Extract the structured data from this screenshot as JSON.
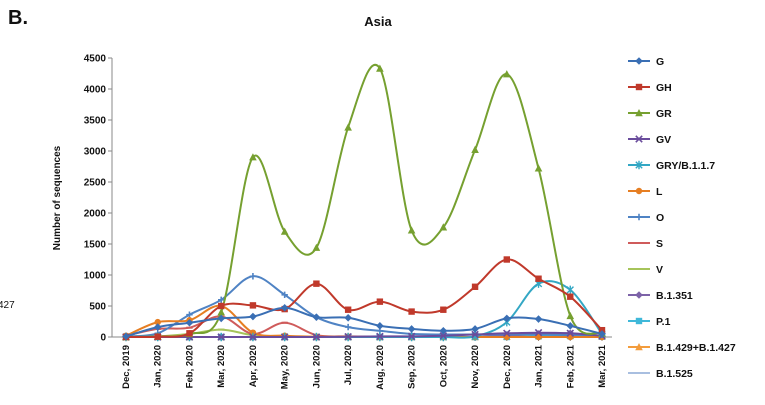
{
  "panel_label": "B.",
  "edge_fragment": "427",
  "chart_data": {
    "type": "line",
    "title": "Asia",
    "xlabel": "",
    "ylabel": "Number of sequences",
    "ylim": [
      0,
      4500
    ],
    "yticks": [
      0,
      500,
      1000,
      1500,
      2000,
      2500,
      3000,
      3500,
      4000,
      4500
    ],
    "grid": false,
    "legend_position": "right",
    "smooth": true,
    "categories": [
      "Dec, 2019",
      "Jan, 2020",
      "Feb, 2020",
      "Mar, 2020",
      "Apr, 2020",
      "May, 2020",
      "Jun, 2020",
      "Jul, 2020",
      "Aug, 2020",
      "Sep, 2020",
      "Oct, 2020",
      "Nov, 2020",
      "Dec, 2020",
      "Jan, 2021",
      "Feb, 2021",
      "Mar, 2021"
    ],
    "series": [
      {
        "name": "G",
        "color": "#3a6fb4",
        "marker": "diamond",
        "values": [
          10,
          160,
          230,
          300,
          330,
          470,
          320,
          310,
          180,
          130,
          100,
          130,
          300,
          290,
          180,
          50
        ]
      },
      {
        "name": "GH",
        "color": "#c0392b",
        "marker": "square",
        "values": [
          0,
          5,
          60,
          500,
          510,
          450,
          860,
          440,
          570,
          410,
          440,
          810,
          1250,
          940,
          650,
          110
        ]
      },
      {
        "name": "GR",
        "color": "#76a030",
        "marker": "triangle",
        "values": [
          0,
          10,
          50,
          400,
          2900,
          1700,
          1440,
          3380,
          4330,
          1720,
          1770,
          3020,
          4240,
          2720,
          340,
          60
        ]
      },
      {
        "name": "GV",
        "color": "#6a4c9c",
        "marker": "x",
        "values": [
          0,
          0,
          0,
          0,
          0,
          0,
          0,
          5,
          10,
          10,
          20,
          40,
          60,
          70,
          60,
          20
        ]
      },
      {
        "name": "GRY/B.1.1.7",
        "color": "#33a7c4",
        "marker": "star",
        "values": [
          0,
          0,
          0,
          0,
          0,
          0,
          0,
          0,
          0,
          0,
          0,
          10,
          240,
          860,
          760,
          50
        ]
      },
      {
        "name": "L",
        "color": "#e67e22",
        "marker": "circle",
        "values": [
          20,
          240,
          270,
          500,
          70,
          20,
          5,
          5,
          0,
          0,
          0,
          0,
          0,
          0,
          0,
          0
        ]
      },
      {
        "name": "O",
        "color": "#4f83c4",
        "marker": "plus",
        "values": [
          10,
          60,
          360,
          600,
          980,
          680,
          320,
          160,
          100,
          50,
          40,
          40,
          40,
          40,
          30,
          20
        ]
      },
      {
        "name": "S",
        "color": "#cf5b5b",
        "marker": "dash",
        "values": [
          20,
          130,
          150,
          330,
          50,
          230,
          30,
          10,
          5,
          0,
          0,
          0,
          0,
          0,
          0,
          0
        ]
      },
      {
        "name": "V",
        "color": "#a6c45a",
        "marker": "dash",
        "values": [
          0,
          10,
          50,
          120,
          30,
          10,
          0,
          0,
          0,
          0,
          0,
          0,
          0,
          0,
          0,
          0
        ]
      },
      {
        "name": "B.1.351",
        "color": "#7d63a8",
        "marker": "diamond",
        "values": [
          0,
          0,
          0,
          0,
          0,
          0,
          0,
          0,
          0,
          0,
          0,
          0,
          20,
          50,
          60,
          10
        ]
      },
      {
        "name": "P.1",
        "color": "#3fb8d9",
        "marker": "square",
        "values": [
          0,
          0,
          0,
          0,
          0,
          0,
          0,
          0,
          0,
          0,
          0,
          0,
          0,
          10,
          15,
          5
        ]
      },
      {
        "name": "B.1.429+B.1.427",
        "color": "#f39c3c",
        "marker": "triangle",
        "values": [
          0,
          0,
          0,
          0,
          0,
          0,
          0,
          0,
          0,
          0,
          0,
          0,
          5,
          20,
          20,
          5
        ]
      },
      {
        "name": "B.1.525",
        "color": "#a9bfe0",
        "marker": "dash",
        "values": [
          0,
          0,
          0,
          0,
          0,
          0,
          0,
          0,
          0,
          0,
          0,
          0,
          0,
          10,
          10,
          5
        ]
      }
    ]
  }
}
